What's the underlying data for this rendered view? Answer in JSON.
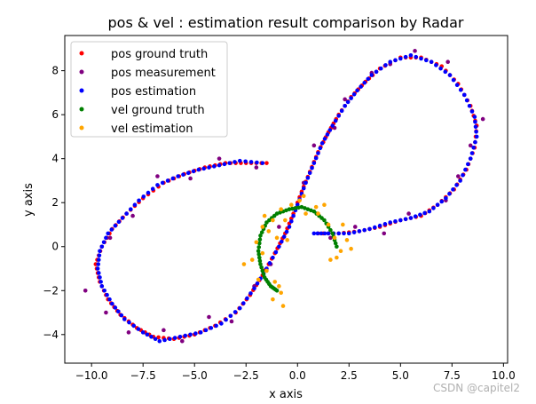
{
  "chart_data": {
    "type": "scatter",
    "title": "pos & vel : estimation result comparison by Radar",
    "xlabel": "x axis",
    "ylabel": "y axis",
    "xlim": [
      -11.3,
      10.2
    ],
    "ylim": [
      -5.3,
      9.6
    ],
    "xticks": [
      -10,
      -7.5,
      -5,
      -2.5,
      0,
      2.5,
      5,
      7.5,
      10
    ],
    "xtick_labels": [
      "−10.0",
      "−7.5",
      "−5.0",
      "−2.5",
      "0.0",
      "2.5",
      "5.0",
      "7.5",
      "10.0"
    ],
    "yticks": [
      -4,
      -2,
      0,
      2,
      4,
      6,
      8
    ],
    "ytick_labels": [
      "−4",
      "−2",
      "0",
      "2",
      "4",
      "6",
      "8"
    ],
    "grid": false,
    "legend": "top-left",
    "series": [
      {
        "name": "pos ground truth",
        "color": "#ff0000",
        "points": [
          [
            -1.5,
            3.8
          ],
          [
            -2.5,
            3.8
          ],
          [
            -3.5,
            3.8
          ],
          [
            -4.5,
            3.6
          ],
          [
            -5.5,
            3.3
          ],
          [
            -6.5,
            2.9
          ],
          [
            -7.5,
            2.2
          ],
          [
            -8.3,
            1.5
          ],
          [
            -9,
            0.8
          ],
          [
            -9.5,
            0
          ],
          [
            -9.8,
            -0.8
          ],
          [
            -9.6,
            -1.6
          ],
          [
            -9.2,
            -2.4
          ],
          [
            -8.6,
            -3.1
          ],
          [
            -7.8,
            -3.7
          ],
          [
            -7,
            -4.1
          ],
          [
            -6,
            -4.2
          ],
          [
            -5,
            -4
          ],
          [
            -4,
            -3.6
          ],
          [
            -3,
            -3
          ],
          [
            -2.3,
            -2.2
          ],
          [
            -1.7,
            -1.3
          ],
          [
            -1.1,
            -0.3
          ],
          [
            -0.6,
            0.6
          ],
          [
            -0.2,
            1.5
          ],
          [
            0.2,
            2.5
          ],
          [
            0.6,
            3.4
          ],
          [
            1,
            4.3
          ],
          [
            1.5,
            5.2
          ],
          [
            2,
            6
          ],
          [
            2.6,
            6.8
          ],
          [
            3.3,
            7.5
          ],
          [
            4,
            8.1
          ],
          [
            5,
            8.6
          ],
          [
            6,
            8.6
          ],
          [
            7,
            8.2
          ],
          [
            7.8,
            7.4
          ],
          [
            8.4,
            6.4
          ],
          [
            8.7,
            5.5
          ],
          [
            8.6,
            4.5
          ],
          [
            8.2,
            3.5
          ],
          [
            7.6,
            2.6
          ],
          [
            6.8,
            1.9
          ],
          [
            6,
            1.4
          ],
          [
            5,
            1.2
          ],
          [
            4,
            0.9
          ],
          [
            3,
            0.7
          ],
          [
            2,
            0.6
          ],
          [
            1,
            0.6
          ]
        ]
      },
      {
        "name": "pos measurement",
        "color": "#800080",
        "points": [
          [
            -2,
            3.6
          ],
          [
            -3.8,
            4
          ],
          [
            -5.2,
            3.1
          ],
          [
            -6.8,
            3.2
          ],
          [
            -8,
            1.4
          ],
          [
            -9.1,
            0.4
          ],
          [
            -10.3,
            -2
          ],
          [
            -9.3,
            -3
          ],
          [
            -8.2,
            -3.9
          ],
          [
            -6.5,
            -3.8
          ],
          [
            -5.6,
            -4.3
          ],
          [
            -4.3,
            -3.2
          ],
          [
            -3.2,
            -3.4
          ],
          [
            -2.1,
            -1.8
          ],
          [
            -1.3,
            -0.8
          ],
          [
            -0.9,
            0.9
          ],
          [
            0.3,
            2.9
          ],
          [
            0.8,
            4.6
          ],
          [
            1.8,
            5.4
          ],
          [
            2.3,
            6.7
          ],
          [
            3.6,
            7.9
          ],
          [
            4.5,
            8.3
          ],
          [
            5.7,
            8.9
          ],
          [
            7.3,
            8.4
          ],
          [
            8.1,
            6.9
          ],
          [
            9,
            5.8
          ],
          [
            8.4,
            4.6
          ],
          [
            7.8,
            3.2
          ],
          [
            7.2,
            2.1
          ],
          [
            5.4,
            1.5
          ],
          [
            4.2,
            0.6
          ],
          [
            2.8,
            0.9
          ],
          [
            1.6,
            0.4
          ]
        ]
      },
      {
        "name": "pos estimation",
        "color": "#0000ff",
        "points": [
          [
            -1.7,
            3.8
          ],
          [
            -2.8,
            3.9
          ],
          [
            -3.8,
            3.7
          ],
          [
            -4.8,
            3.5
          ],
          [
            -5.8,
            3.2
          ],
          [
            -6.8,
            2.8
          ],
          [
            -7.7,
            2.1
          ],
          [
            -8.5,
            1.3
          ],
          [
            -9.2,
            0.6
          ],
          [
            -9.6,
            -0.2
          ],
          [
            -9.7,
            -1
          ],
          [
            -9.5,
            -1.8
          ],
          [
            -9,
            -2.6
          ],
          [
            -8.4,
            -3.3
          ],
          [
            -7.5,
            -3.9
          ],
          [
            -6.7,
            -4.3
          ],
          [
            -5.7,
            -4.1
          ],
          [
            -4.7,
            -3.9
          ],
          [
            -3.7,
            -3.5
          ],
          [
            -2.8,
            -2.8
          ],
          [
            -2.1,
            -1.9
          ],
          [
            -1.5,
            -1
          ],
          [
            -0.9,
            0
          ],
          [
            -0.4,
            0.9
          ],
          [
            0,
            1.9
          ],
          [
            0.4,
            2.9
          ],
          [
            0.8,
            3.8
          ],
          [
            1.2,
            4.7
          ],
          [
            1.7,
            5.5
          ],
          [
            2.3,
            6.4
          ],
          [
            2.9,
            7.1
          ],
          [
            3.6,
            7.8
          ],
          [
            4.5,
            8.4
          ],
          [
            5.5,
            8.7
          ],
          [
            6.5,
            8.4
          ],
          [
            7.4,
            7.8
          ],
          [
            8.1,
            6.9
          ],
          [
            8.6,
            5.9
          ],
          [
            8.7,
            5
          ],
          [
            8.4,
            4
          ],
          [
            7.9,
            3
          ],
          [
            7.2,
            2.2
          ],
          [
            6.4,
            1.6
          ],
          [
            5.5,
            1.3
          ],
          [
            4.5,
            1.1
          ],
          [
            3.5,
            0.8
          ],
          [
            2.5,
            0.6
          ],
          [
            1.5,
            0.6
          ],
          [
            0.8,
            0.6
          ]
        ]
      },
      {
        "name": "vel ground truth",
        "color": "#008000",
        "points": [
          [
            1.9,
            0
          ],
          [
            1.7,
            0.6
          ],
          [
            1.3,
            1.2
          ],
          [
            0.8,
            1.6
          ],
          [
            0.2,
            1.8
          ],
          [
            -0.4,
            1.7
          ],
          [
            -1,
            1.5
          ],
          [
            -1.5,
            1.1
          ],
          [
            -1.8,
            0.5
          ],
          [
            -1.9,
            -0.2
          ],
          [
            -1.8,
            -0.8
          ],
          [
            -1.6,
            -1.4
          ],
          [
            -1.3,
            -1.8
          ],
          [
            -1,
            -2
          ]
        ]
      },
      {
        "name": "vel estimation",
        "color": "#ffa500",
        "points": [
          [
            2.1,
            -0.2
          ],
          [
            1.8,
            0.4
          ],
          [
            2.4,
            0.3
          ],
          [
            1.6,
            -0.6
          ],
          [
            2.6,
            -0.1
          ],
          [
            1.5,
            1
          ],
          [
            0.9,
            1.8
          ],
          [
            0.4,
            1.5
          ],
          [
            0.1,
            2.1
          ],
          [
            -0.3,
            1.9
          ],
          [
            -0.8,
            1.7
          ],
          [
            -1.2,
            1.2
          ],
          [
            -1.6,
            1.4
          ],
          [
            -1.4,
            0.7
          ],
          [
            -2,
            0.2
          ],
          [
            -1.7,
            -0.3
          ],
          [
            -2.2,
            -0.6
          ],
          [
            -1.5,
            -1.1
          ],
          [
            -1.9,
            -1.5
          ],
          [
            -1.1,
            -1.6
          ],
          [
            -0.8,
            -2.1
          ],
          [
            -1.2,
            -2.4
          ],
          [
            -0.9,
            -1.8
          ],
          [
            -2.6,
            -0.8
          ],
          [
            -0.5,
            0.3
          ],
          [
            1,
            1.5
          ],
          [
            2.2,
            1
          ],
          [
            1.3,
            1.9
          ],
          [
            -1,
            0.4
          ],
          [
            1.9,
            -0.5
          ],
          [
            0.3,
            2.3
          ],
          [
            -0.6,
            1.2
          ],
          [
            -1.7,
            0.9
          ],
          [
            -0.7,
            -2.7
          ]
        ]
      }
    ]
  },
  "watermark": "CSDN @capitel2"
}
